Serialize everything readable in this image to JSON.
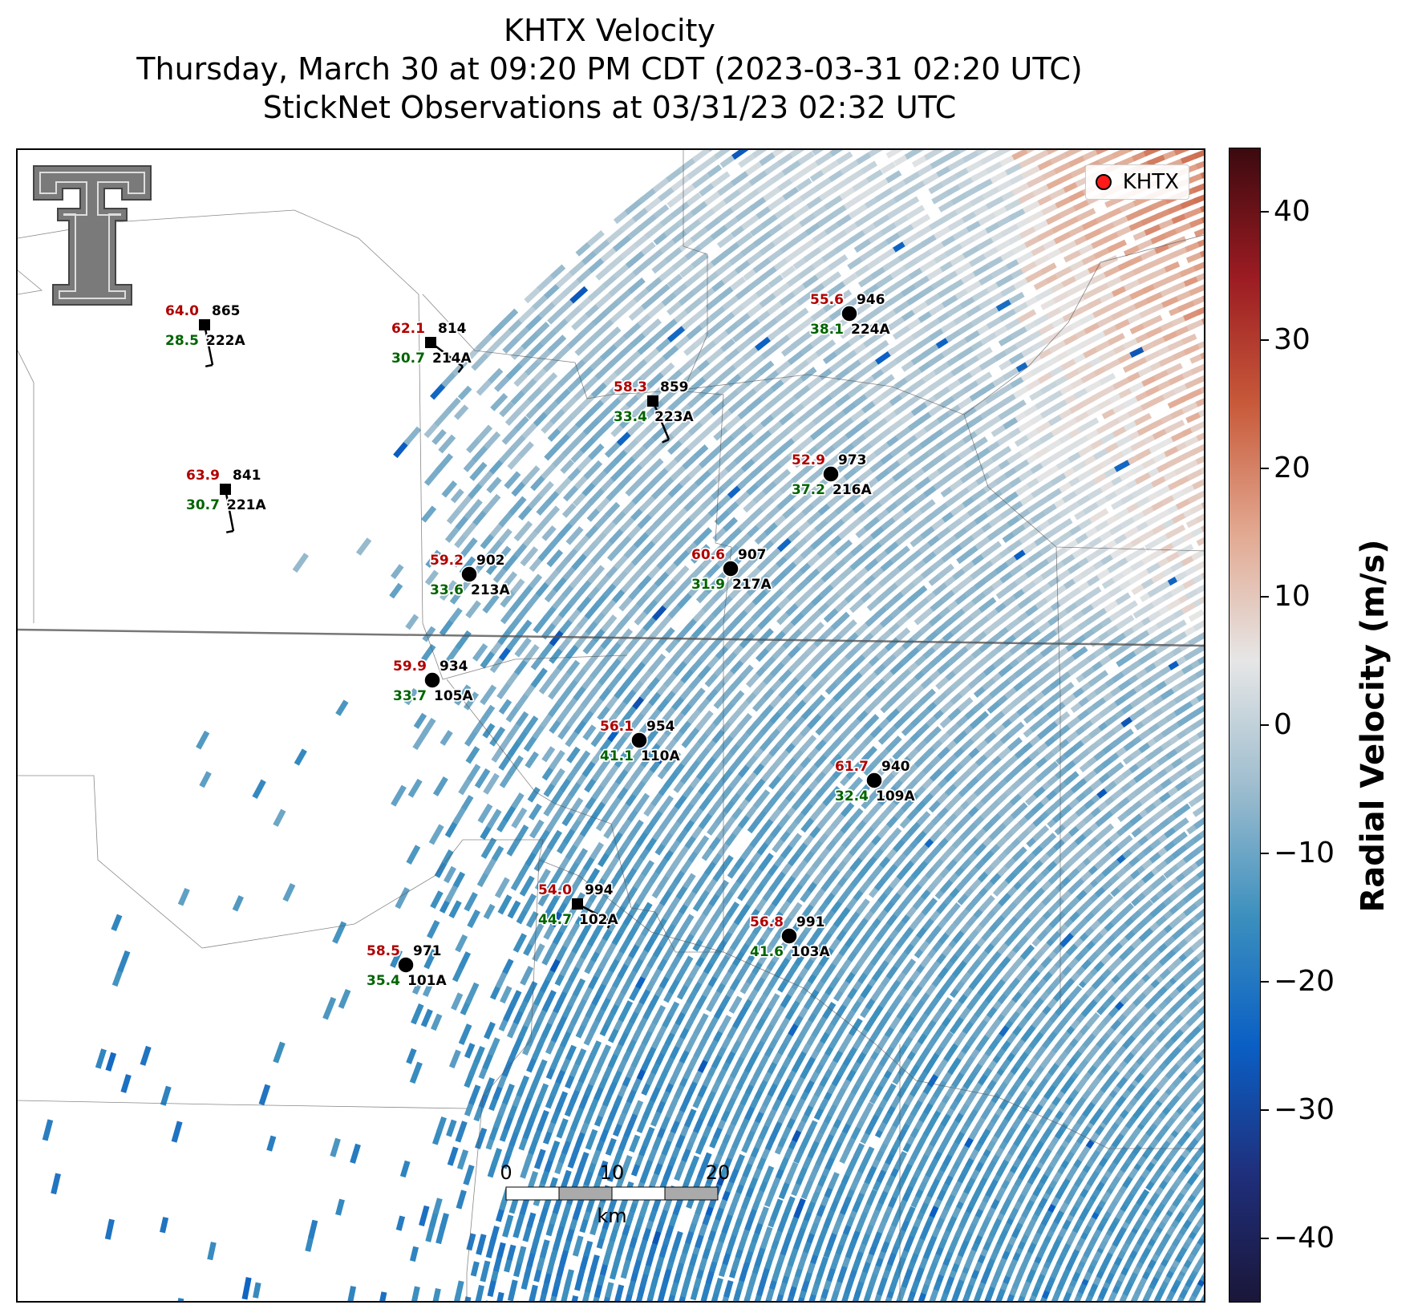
{
  "title": {
    "line1": "KHTX Velocity",
    "line2": "Thursday, March 30 at 09:20 PM CDT (2023-03-31 02:20 UTC)",
    "line3": "StickNet Observations at 03/31/23 02:32 UTC"
  },
  "legend": {
    "label": "KHTX",
    "marker_color": "#ff1a1a"
  },
  "colorbar": {
    "label": "Radial Velocity (m/s)",
    "min": -45,
    "max": 45,
    "ticks": [
      40,
      30,
      20,
      10,
      0,
      -10,
      -20,
      -30,
      -40
    ],
    "tick_labels": [
      "40",
      "30",
      "20",
      "10",
      "0",
      "−10",
      "−20",
      "−30",
      "−40"
    ],
    "colormap": [
      "#1a1638",
      "#1f2f7c",
      "#0a5fc4",
      "#3b8fbe",
      "#9cbcce",
      "#e6e6e6",
      "#e2a890",
      "#c85a3a",
      "#9b1b22",
      "#3b0a0f"
    ]
  },
  "scale_bar": {
    "unit": "km",
    "labels": [
      "0",
      "10",
      "20"
    ]
  },
  "stations": [
    {
      "id": "222A",
      "temp": "64.0",
      "dew": "28.5",
      "pressure": "865",
      "marker": "square",
      "lon_deg": 0.0,
      "lat_deg": 0.0
    },
    {
      "id": "214A",
      "temp": "62.1",
      "dew": "30.7",
      "pressure": "814",
      "marker": "square"
    },
    {
      "id": "223A",
      "temp": "58.3",
      "dew": "33.4",
      "pressure": "859",
      "marker": "square"
    },
    {
      "id": "224A",
      "temp": "55.6",
      "dew": "38.1",
      "pressure": "946",
      "marker": "circle"
    },
    {
      "id": "221A",
      "temp": "63.9",
      "dew": "30.7",
      "pressure": "841",
      "marker": "square"
    },
    {
      "id": "216A",
      "temp": "52.9",
      "dew": "37.2",
      "pressure": "973",
      "marker": "circle"
    },
    {
      "id": "213A",
      "temp": "59.2",
      "dew": "33.6",
      "pressure": "902",
      "marker": "circle"
    },
    {
      "id": "217A",
      "temp": "60.6",
      "dew": "31.9",
      "pressure": "907",
      "marker": "circle"
    },
    {
      "id": "105A",
      "temp": "59.9",
      "dew": "33.7",
      "pressure": "934",
      "marker": "circle"
    },
    {
      "id": "110A",
      "temp": "56.1",
      "dew": "41.1",
      "pressure": "954",
      "marker": "circle"
    },
    {
      "id": "109A",
      "temp": "61.7",
      "dew": "32.4",
      "pressure": "940",
      "marker": "circle"
    },
    {
      "id": "102A",
      "temp": "54.0",
      "dew": "44.7",
      "pressure": "994",
      "marker": "square"
    },
    {
      "id": "103A",
      "temp": "56.8",
      "dew": "41.6",
      "pressure": "991",
      "marker": "circle"
    },
    {
      "id": "101A",
      "temp": "58.5",
      "dew": "35.4",
      "pressure": "971",
      "marker": "circle"
    }
  ]
}
